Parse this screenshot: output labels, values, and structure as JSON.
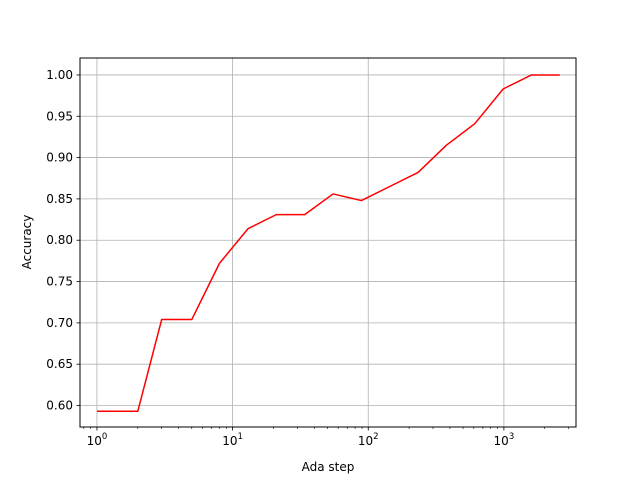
{
  "chart_data": {
    "type": "line",
    "title": "",
    "xlabel": "Ada step",
    "ylabel": "Accuracy",
    "xscale": "log",
    "xlim": [
      0.75,
      3400
    ],
    "ylim": [
      0.574,
      1.0205
    ],
    "grid": true,
    "x_ticks": [
      {
        "value": 1,
        "base": "10",
        "exp": "0"
      },
      {
        "value": 10,
        "base": "10",
        "exp": "1"
      },
      {
        "value": 100,
        "base": "10",
        "exp": "2"
      },
      {
        "value": 1000,
        "base": "10",
        "exp": "3"
      }
    ],
    "y_ticks": [
      {
        "value": 0.6,
        "label": "0.60"
      },
      {
        "value": 0.65,
        "label": "0.65"
      },
      {
        "value": 0.7,
        "label": "0.70"
      },
      {
        "value": 0.75,
        "label": "0.75"
      },
      {
        "value": 0.8,
        "label": "0.80"
      },
      {
        "value": 0.85,
        "label": "0.85"
      },
      {
        "value": 0.9,
        "label": "0.90"
      },
      {
        "value": 0.95,
        "label": "0.95"
      },
      {
        "value": 1.0,
        "label": "1.00"
      }
    ],
    "series": [
      {
        "color": "#ff0000",
        "x": [
          1,
          2,
          3,
          5,
          8,
          13,
          21,
          34,
          55,
          89,
          144,
          233,
          377,
          610,
          987,
          1597,
          2584
        ],
        "y": [
          0.593,
          0.593,
          0.704,
          0.704,
          0.772,
          0.814,
          0.831,
          0.831,
          0.856,
          0.848,
          0.865,
          0.882,
          0.915,
          0.941,
          0.983,
          1.0,
          1.0
        ]
      }
    ]
  }
}
